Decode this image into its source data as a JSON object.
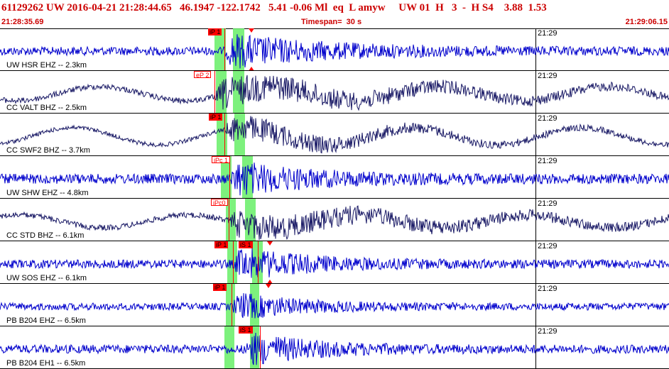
{
  "header": {
    "event_line": "61129262 UW 2016-04-21 21:28:44.65   46.1947 -122.1742   5.41 -0.06 Ml  eq  L amyw     UW 01  H   3  -  H S4    3.88  1.53",
    "start_time": "21:28:35.69",
    "timespan": "Timespan=  30 s",
    "end_time": "21:29:06.15"
  },
  "colors": {
    "header_text": "#cc0000",
    "trace_blue": "#0000cc",
    "trace_navy": "#1a1a66",
    "pick": "#ff0000",
    "window_band": "#66ee66"
  },
  "minute_tick_label": "21:29",
  "traces": [
    {
      "label": "UW HSR EHZ -- 2.3km",
      "color": "#0000cc",
      "picks": [
        "iP 1"
      ],
      "polarity": "down-up"
    },
    {
      "label": "CC VALT BHZ -- 2.5km",
      "color": "#1a1a66",
      "picks": [
        "eP 2"
      ],
      "polarity": ""
    },
    {
      "label": "CC SWF2 BHZ -- 3.7km",
      "color": "#1a1a66",
      "picks": [
        "iP 1"
      ],
      "polarity": ""
    },
    {
      "label": "UW SHW EHZ -- 4.8km",
      "color": "#0000cc",
      "picks": [
        "iPc 1"
      ],
      "polarity": ""
    },
    {
      "label": "CC STD BHZ -- 6.1km",
      "color": "#1a1a66",
      "picks": [
        "iPc0"
      ],
      "polarity": ""
    },
    {
      "label": "UW SOS EHZ -- 6.1km",
      "color": "#0000cc",
      "picks": [
        "iP 1",
        "iS 1"
      ],
      "polarity": "down-up"
    },
    {
      "label": "PB B204 EHZ -- 6.5km",
      "color": "#0000cc",
      "picks": [
        "iP 1"
      ],
      "polarity": "down"
    },
    {
      "label": "PB B204 EH1 -- 6.5km",
      "color": "#0000cc",
      "picks": [
        "iS 1"
      ],
      "polarity": ""
    }
  ]
}
